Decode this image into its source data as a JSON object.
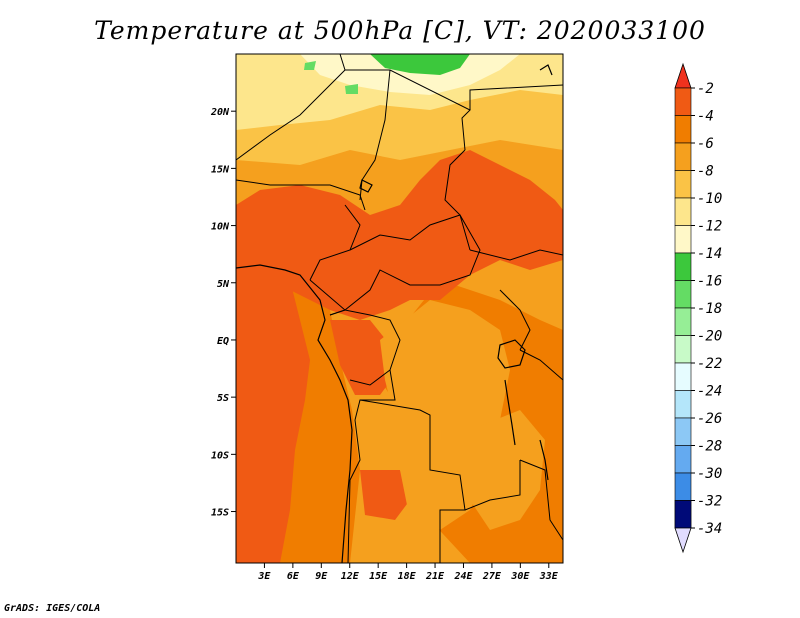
{
  "title": "Temperature at 500hPa [C], VT: 2020033100",
  "footer": "GrADS: IGES/COLA",
  "map": {
    "lon_range": [
      0,
      34.5
    ],
    "lat_range": [
      -19.5,
      25
    ],
    "lat_ticks": [
      {
        "value": 20,
        "label": "20N"
      },
      {
        "value": 15,
        "label": "15N"
      },
      {
        "value": 10,
        "label": "10N"
      },
      {
        "value": 5,
        "label": "5N"
      },
      {
        "value": 0,
        "label": "EQ"
      },
      {
        "value": -5,
        "label": "5S"
      },
      {
        "value": -10,
        "label": "10S"
      },
      {
        "value": -15,
        "label": "15S"
      }
    ],
    "lon_ticks": [
      {
        "value": 3,
        "label": "3E"
      },
      {
        "value": 6,
        "label": "6E"
      },
      {
        "value": 9,
        "label": "9E"
      },
      {
        "value": 12,
        "label": "12E"
      },
      {
        "value": 15,
        "label": "15E"
      },
      {
        "value": 18,
        "label": "18E"
      },
      {
        "value": 21,
        "label": "21E"
      },
      {
        "value": 24,
        "label": "24E"
      },
      {
        "value": 27,
        "label": "27E"
      },
      {
        "value": 30,
        "label": "30E"
      },
      {
        "value": 33,
        "label": "33E"
      }
    ]
  },
  "colorbar": {
    "levels": [
      {
        "label": "-2",
        "color": "#f05a14"
      },
      {
        "label": "-4",
        "color": "#f07d00"
      },
      {
        "label": "-6",
        "color": "#f5a01e"
      },
      {
        "label": "-8",
        "color": "#fac346"
      },
      {
        "label": "-10",
        "color": "#fde68c"
      },
      {
        "label": "-12",
        "color": "#fff8c8"
      },
      {
        "label": "-14",
        "color": "#3cc83c"
      },
      {
        "label": "-16",
        "color": "#64dc64"
      },
      {
        "label": "-18",
        "color": "#96ee96"
      },
      {
        "label": "-20",
        "color": "#c8fac8"
      },
      {
        "label": "-22",
        "color": "#e6fcff"
      },
      {
        "label": "-24",
        "color": "#b4e6fa"
      },
      {
        "label": "-26",
        "color": "#8cc8f5"
      },
      {
        "label": "-28",
        "color": "#64aaf0"
      },
      {
        "label": "-30",
        "color": "#3c8ce6"
      },
      {
        "label": "-32",
        "color": "#1e6ed2"
      },
      {
        "label": "-34",
        "color": "#0a46be"
      }
    ],
    "top_arrow_color": "#f0321e",
    "bottom_arrow_color": "#e1dcff",
    "last_band_color": "#000a78"
  },
  "field_colors": {
    "c_m2": "#f05a14",
    "c_m4": "#f07d00",
    "c_m6": "#f5a01e",
    "c_m8": "#fac346",
    "c_m10": "#fde68c",
    "c_m12": "#fff8c8",
    "c_m14": "#3cc83c",
    "c_m16": "#64dc64"
  }
}
